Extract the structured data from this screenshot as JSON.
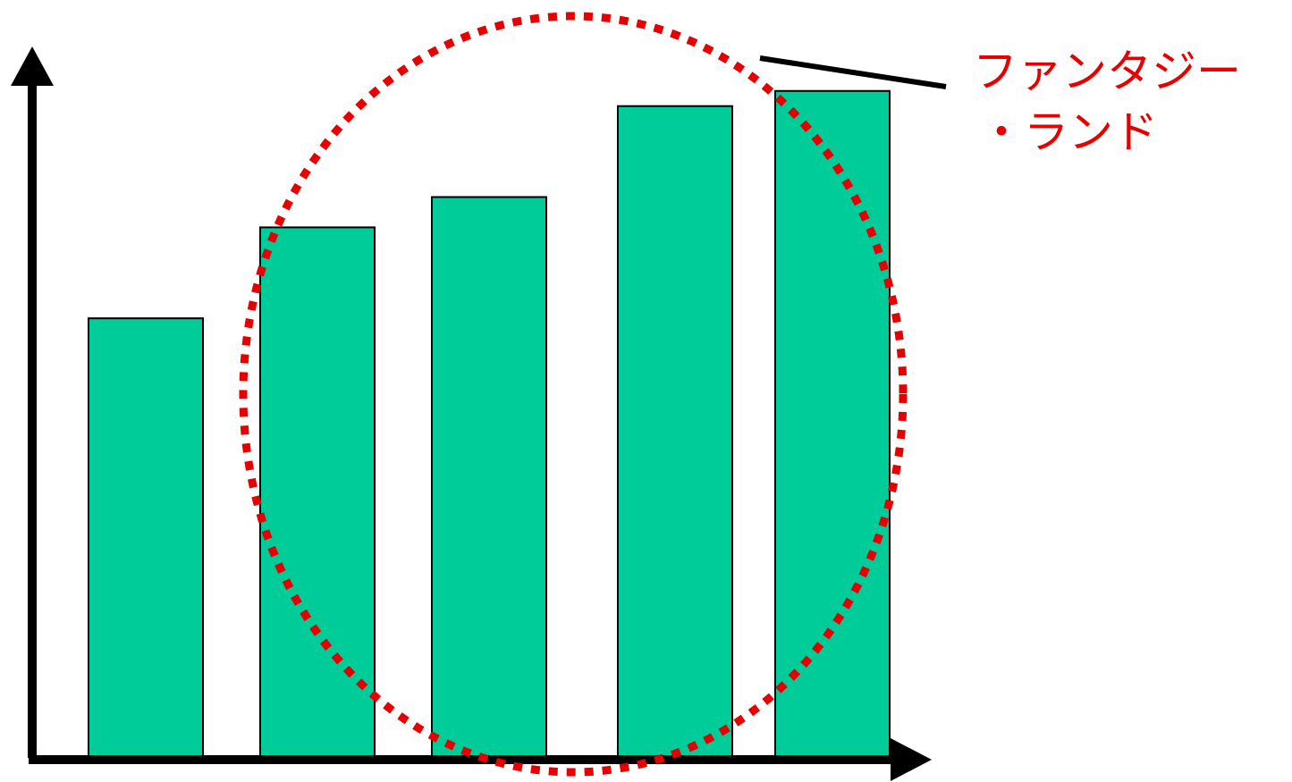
{
  "chart_data": {
    "type": "bar",
    "categories": [
      "",
      "",
      "",
      "",
      ""
    ],
    "values": [
      58,
      70,
      74,
      86,
      88
    ],
    "ylim": [
      0,
      100
    ],
    "grid": false,
    "legend": "none",
    "title": "",
    "xlabel": "",
    "ylabel": "",
    "annotation": {
      "lines": [
        "ファンタジー",
        "・ランド"
      ],
      "highlighted_bars": [
        1,
        2,
        3,
        4
      ]
    }
  },
  "colors": {
    "bar_fill": "#00cc99",
    "bar_stroke": "#000000",
    "axis": "#000000",
    "annotation": "#e60000"
  }
}
